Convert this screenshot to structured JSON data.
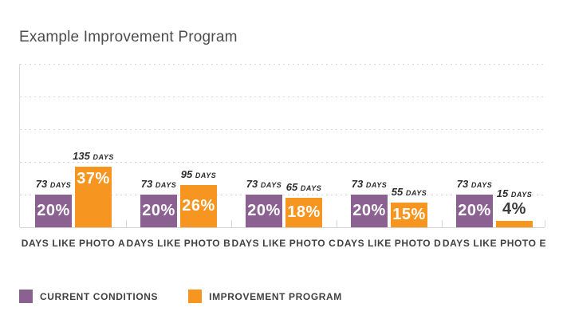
{
  "title": "Example Improvement Program",
  "colors": {
    "current": "#8a6190",
    "improvement": "#f6951f",
    "grid": "#d8d8d8",
    "text_dark": "#414042"
  },
  "legend": [
    {
      "label": "CURRENT CONDITIONS",
      "color": "#8a6190"
    },
    {
      "label": "IMPROVEMENT PROGRAM",
      "color": "#f6951f"
    }
  ],
  "chart_data": {
    "type": "bar",
    "title": "Example Improvement Program",
    "categories": [
      "DAYS LIKE PHOTO A",
      "DAYS LIKE PHOTO B",
      "DAYS LIKE PHOTO C",
      "DAYS LIKE PHOTO D",
      "DAYS LIKE PHOTO E"
    ],
    "series": [
      {
        "name": "CURRENT CONDITIONS",
        "color": "#8a6190",
        "values_pct": [
          20,
          20,
          20,
          20,
          20
        ],
        "values_days": [
          73,
          73,
          73,
          73,
          73
        ]
      },
      {
        "name": "IMPROVEMENT PROGRAM",
        "color": "#f6951f",
        "values_pct": [
          37,
          26,
          18,
          15,
          4
        ],
        "values_days": [
          135,
          95,
          65,
          55,
          15
        ]
      }
    ],
    "days_suffix": "DAYS",
    "pct_suffix": "%",
    "ylabel": "",
    "xlabel": "",
    "ylim": [
      0,
      100
    ],
    "grid": "horizontal-dashed",
    "gridline_interval_pct": 20,
    "legend_position": "bottom-left"
  }
}
